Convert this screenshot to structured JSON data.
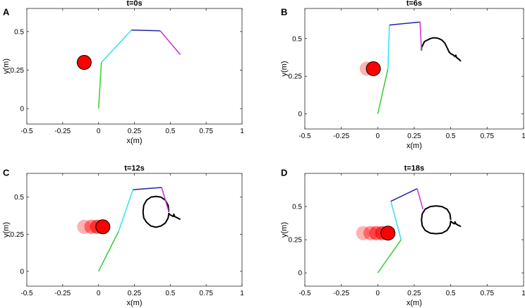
{
  "colors": {
    "link1": "#33cc33",
    "link2": "#33e0f0",
    "link3": "#2222aa",
    "link4": "#cc33cc",
    "ball": "#ff0000",
    "path": "#000000"
  },
  "chart_data": [
    {
      "type": "line",
      "panel": "A",
      "title": "t=0s",
      "xlabel": "x(m)",
      "ylabel": "y(m)",
      "xlim": [
        -0.5,
        1
      ],
      "ylim": [
        -0.1,
        0.65
      ],
      "xticks": [
        "-0.5",
        "-0.25",
        "0",
        "0.25",
        "0.5",
        "0.75",
        "1"
      ],
      "yticks": [
        "0",
        "0.25",
        "0.5"
      ],
      "arm": [
        [
          0,
          0
        ],
        [
          0.02,
          0.3
        ],
        [
          0.23,
          0.51
        ],
        [
          0.43,
          0.505
        ],
        [
          0.57,
          0.35
        ]
      ],
      "balls": [
        [
          -0.1,
          0.3
        ]
      ],
      "path": []
    },
    {
      "type": "line",
      "panel": "B",
      "title": "t=6s",
      "xlabel": "x(m)",
      "ylabel": "y(m)",
      "xlim": [
        -0.5,
        1
      ],
      "ylim": [
        -0.1,
        0.7
      ],
      "xticks": [
        "-0.5",
        "-0.25",
        "0",
        "0.25",
        "0.5",
        "0.75",
        "1"
      ],
      "yticks": [
        "0",
        "0.25",
        "0.5"
      ],
      "arm": [
        [
          0,
          0
        ],
        [
          0.07,
          0.3
        ],
        [
          0.08,
          0.59
        ],
        [
          0.29,
          0.61
        ],
        [
          0.3,
          0.42
        ]
      ],
      "balls": [
        [
          -0.075,
          0.3
        ],
        [
          -0.03,
          0.3
        ]
      ],
      "path": [
        [
          0.3,
          0.42
        ],
        [
          0.3,
          0.44
        ],
        [
          0.31,
          0.46
        ],
        [
          0.32,
          0.48
        ],
        [
          0.34,
          0.49
        ],
        [
          0.36,
          0.5
        ],
        [
          0.38,
          0.505
        ],
        [
          0.4,
          0.505
        ],
        [
          0.42,
          0.5
        ],
        [
          0.44,
          0.49
        ],
        [
          0.46,
          0.47
        ],
        [
          0.47,
          0.45
        ],
        [
          0.48,
          0.43
        ],
        [
          0.49,
          0.41
        ],
        [
          0.5,
          0.4
        ],
        [
          0.52,
          0.39
        ],
        [
          0.53,
          0.38
        ],
        [
          0.535,
          0.39
        ],
        [
          0.54,
          0.375
        ],
        [
          0.56,
          0.36
        ],
        [
          0.57,
          0.35
        ]
      ]
    },
    {
      "type": "line",
      "panel": "C",
      "title": "t=12s",
      "xlabel": "x(m)",
      "ylabel": "y(m)",
      "xlim": [
        -0.5,
        1
      ],
      "ylim": [
        -0.1,
        0.66
      ],
      "xticks": [
        "-0.5",
        "-0.25",
        "0",
        "0.25",
        "0.5",
        "0.75",
        "1"
      ],
      "yticks": [
        "0",
        "0.25",
        "0.5"
      ],
      "arm": [
        [
          0,
          0
        ],
        [
          0.14,
          0.27
        ],
        [
          0.24,
          0.55
        ],
        [
          0.44,
          0.565
        ],
        [
          0.49,
          0.4
        ]
      ],
      "balls": [
        [
          -0.1,
          0.3
        ],
        [
          -0.05,
          0.3
        ],
        [
          -0.01,
          0.3
        ],
        [
          0.03,
          0.3
        ]
      ],
      "path": [
        [
          0.49,
          0.4
        ],
        [
          0.485,
          0.445
        ],
        [
          0.465,
          0.48
        ],
        [
          0.435,
          0.5
        ],
        [
          0.4,
          0.505
        ],
        [
          0.365,
          0.5
        ],
        [
          0.335,
          0.48
        ],
        [
          0.315,
          0.445
        ],
        [
          0.31,
          0.4
        ],
        [
          0.315,
          0.36
        ],
        [
          0.335,
          0.33
        ],
        [
          0.365,
          0.305
        ],
        [
          0.4,
          0.297
        ],
        [
          0.435,
          0.305
        ],
        [
          0.465,
          0.325
        ],
        [
          0.485,
          0.36
        ],
        [
          0.49,
          0.39
        ],
        [
          0.5,
          0.38
        ],
        [
          0.52,
          0.37
        ],
        [
          0.525,
          0.385
        ],
        [
          0.53,
          0.37
        ],
        [
          0.55,
          0.36
        ],
        [
          0.57,
          0.35
        ]
      ]
    },
    {
      "type": "line",
      "panel": "D",
      "title": "t=18s",
      "xlabel": "x(m)",
      "ylabel": "y(m)",
      "xlim": [
        -0.5,
        1
      ],
      "ylim": [
        -0.1,
        0.75
      ],
      "xticks": [
        "-0.5",
        "-0.25",
        "0",
        "0.25",
        "0.5",
        "0.75",
        "1"
      ],
      "yticks": [
        "0",
        "0.25",
        "0.5"
      ],
      "arm": [
        [
          0,
          0
        ],
        [
          0.16,
          0.25
        ],
        [
          0.09,
          0.54
        ],
        [
          0.27,
          0.635
        ],
        [
          0.31,
          0.48
        ]
      ],
      "balls": [
        [
          -0.1,
          0.3
        ],
        [
          -0.05,
          0.3
        ],
        [
          -0.01,
          0.3
        ],
        [
          0.03,
          0.3
        ],
        [
          0.07,
          0.3
        ]
      ],
      "path": [
        [
          0.5,
          0.4
        ],
        [
          0.495,
          0.445
        ],
        [
          0.475,
          0.48
        ],
        [
          0.44,
          0.5
        ],
        [
          0.4,
          0.505
        ],
        [
          0.36,
          0.5
        ],
        [
          0.325,
          0.48
        ],
        [
          0.305,
          0.445
        ],
        [
          0.3,
          0.4
        ],
        [
          0.305,
          0.355
        ],
        [
          0.325,
          0.32
        ],
        [
          0.36,
          0.3
        ],
        [
          0.4,
          0.295
        ],
        [
          0.44,
          0.3
        ],
        [
          0.475,
          0.32
        ],
        [
          0.495,
          0.355
        ],
        [
          0.5,
          0.39
        ],
        [
          0.51,
          0.38
        ],
        [
          0.525,
          0.37
        ],
        [
          0.53,
          0.385
        ],
        [
          0.535,
          0.37
        ],
        [
          0.55,
          0.36
        ],
        [
          0.57,
          0.35
        ]
      ]
    }
  ]
}
